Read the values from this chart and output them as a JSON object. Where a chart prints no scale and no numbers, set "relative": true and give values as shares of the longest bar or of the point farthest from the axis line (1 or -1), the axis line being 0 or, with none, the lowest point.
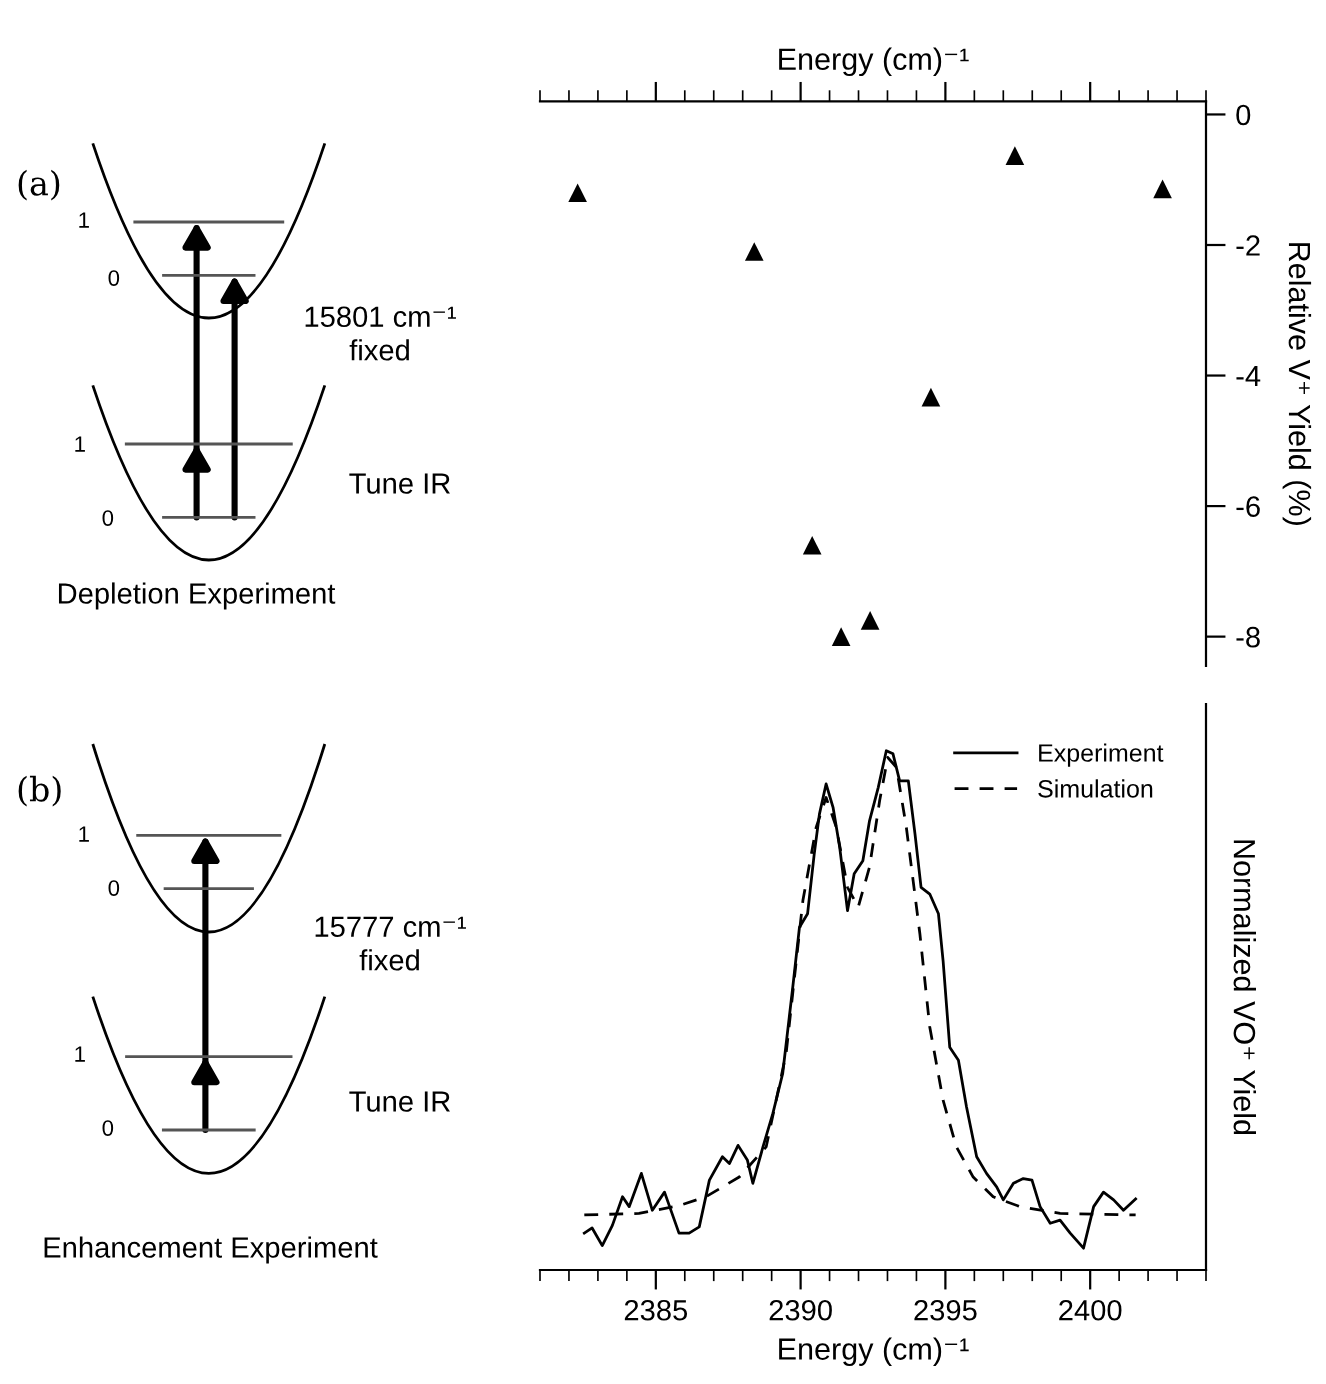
{
  "chart_data": [
    {
      "type": "scatter",
      "xlabel": "Energy (cm)⁻¹",
      "ylabel": "Relative V⁺ Yield (%)",
      "x": [
        2382.3,
        2388.4,
        2390.4,
        2391.4,
        2392.4,
        2394.5,
        2397.4,
        2402.5
      ],
      "values": [
        -1.2,
        -2.1,
        -6.6,
        -8.0,
        -7.75,
        -4.33,
        -0.63,
        -1.14
      ],
      "color": "#000000",
      "marker": "triangle",
      "xlim": [
        2381,
        2404
      ],
      "xticks": [
        {
          "value": 2385,
          "label": null
        },
        {
          "value": 2390,
          "label": null
        },
        {
          "value": 2395,
          "label": null
        },
        {
          "value": 2400,
          "label": null
        }
      ],
      "ylim": [
        -8.45,
        0.2
      ],
      "yticks": [
        0,
        -2,
        -4,
        -6,
        -8
      ],
      "tick_labels": "y",
      "grid": false,
      "legend": false,
      "annotations": [
        "(a)",
        "1",
        "0",
        "1",
        "0",
        "15801 cm⁻¹\nfixed",
        "Tune IR",
        "Depletion Experiment"
      ]
    },
    {
      "type": "line",
      "xlabel": "Energy (cm)⁻¹",
      "ylabel": "Normalized VO⁺ Yield",
      "relative": true,
      "series": [
        {
          "name": "Experiment",
          "color": "#000000",
          "line_style": "solid",
          "x": [
            2382.53,
            2382.8,
            2383.15,
            2383.5,
            2383.85,
            2384.08,
            2384.5,
            2384.88,
            2385.3,
            2385.8,
            2386.15,
            2386.5,
            2386.85,
            2387.3,
            2387.54,
            2387.84,
            2388.16,
            2388.35,
            2388.7,
            2389.04,
            2389.38,
            2389.73,
            2389.96,
            2390.24,
            2390.47,
            2390.65,
            2390.88,
            2391.12,
            2391.35,
            2391.62,
            2391.85,
            2392.15,
            2392.38,
            2392.68,
            2392.96,
            2393.19,
            2393.42,
            2393.72,
            2393.95,
            2394.16,
            2394.46,
            2394.76,
            2394.92,
            2395.15,
            2395.45,
            2395.73,
            2396.08,
            2396.42,
            2396.77,
            2397.0,
            2397.35,
            2397.69,
            2397.99,
            2398.27,
            2398.62,
            2398.96,
            2399.31,
            2399.77,
            2400.12,
            2400.46,
            2400.81,
            2401.15,
            2401.57
          ],
          "values": [
            0.071,
            0.081,
            0.047,
            0.086,
            0.141,
            0.122,
            0.186,
            0.115,
            0.15,
            0.071,
            0.071,
            0.083,
            0.173,
            0.218,
            0.205,
            0.24,
            0.212,
            0.167,
            0.237,
            0.301,
            0.378,
            0.545,
            0.66,
            0.686,
            0.801,
            0.878,
            0.936,
            0.891,
            0.814,
            0.692,
            0.763,
            0.788,
            0.865,
            0.929,
            1.0,
            0.994,
            0.942,
            0.942,
            0.84,
            0.737,
            0.724,
            0.686,
            0.596,
            0.429,
            0.404,
            0.314,
            0.218,
            0.186,
            0.16,
            0.135,
            0.167,
            0.176,
            0.173,
            0.122,
            0.09,
            0.096,
            0.071,
            0.042,
            0.122,
            0.15,
            0.135,
            0.115,
            0.137
          ]
        },
        {
          "name": "Simulation",
          "color": "#000000",
          "line_style": "dashed",
          "x": [
            2382.53,
            2384.42,
            2385.8,
            2386.73,
            2387.88,
            2388.81,
            2389.5,
            2390.08,
            2390.54,
            2390.88,
            2391.23,
            2391.62,
            2391.99,
            2392.38,
            2392.73,
            2393.01,
            2393.31,
            2393.65,
            2394.12,
            2394.46,
            2394.92,
            2395.38,
            2395.96,
            2396.65,
            2397.58,
            2398.96,
            2401.57
          ],
          "values": [
            0.106,
            0.109,
            0.124,
            0.141,
            0.179,
            0.237,
            0.417,
            0.712,
            0.853,
            0.91,
            0.853,
            0.737,
            0.699,
            0.776,
            0.904,
            0.987,
            0.968,
            0.853,
            0.647,
            0.468,
            0.327,
            0.237,
            0.179,
            0.141,
            0.122,
            0.109,
            0.106
          ]
        }
      ],
      "xlim": [
        2381,
        2404
      ],
      "xticks": [
        2385,
        2390,
        2395,
        2400
      ],
      "grid": false,
      "legend": "top right",
      "annotations": [
        "(b)",
        "1",
        "0",
        "1",
        "0",
        "15777 cm⁻¹\nfixed",
        "Tune IR",
        "Enhancement Experiment"
      ]
    }
  ]
}
